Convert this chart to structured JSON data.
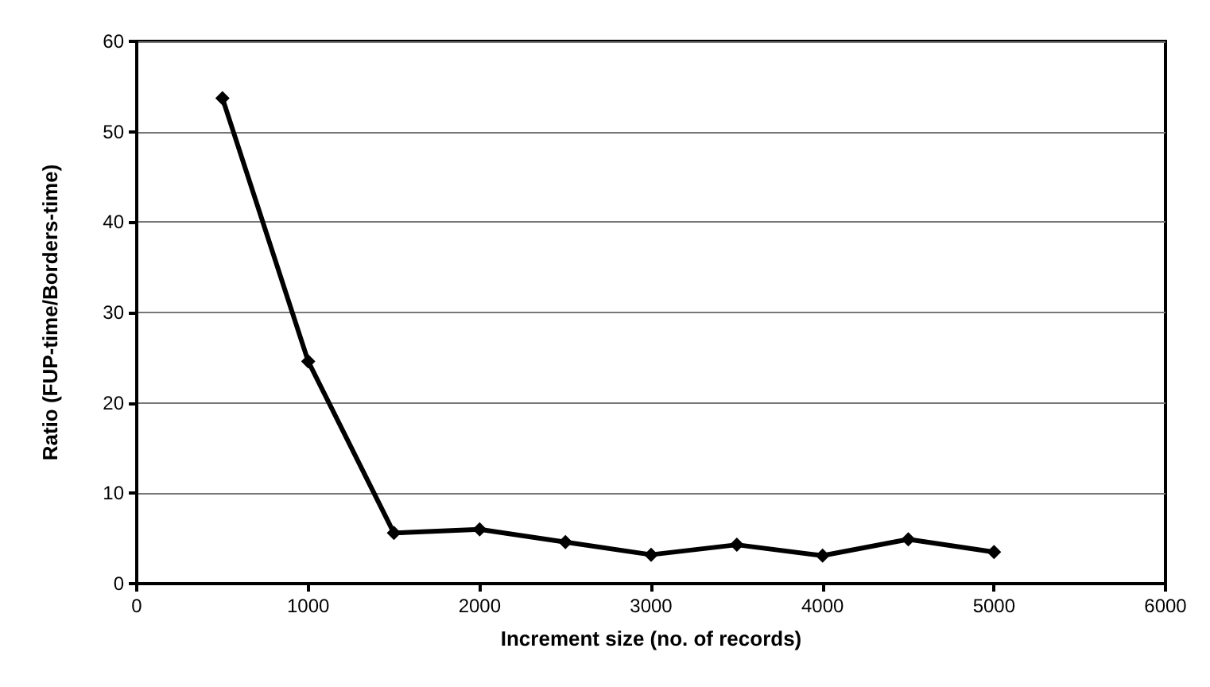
{
  "chart_data": {
    "type": "line",
    "xlabel": "Increment size (no. of records)",
    "ylabel": "Ratio (FUP-time/Borders-time)",
    "x": [
      500,
      1000,
      1500,
      2000,
      2500,
      3000,
      3500,
      4000,
      4500,
      5000
    ],
    "series": [
      {
        "color": "#000000",
        "values": [
          53.7,
          24.6,
          5.6,
          6.0,
          4.6,
          3.2,
          4.3,
          3.1,
          4.9,
          3.5
        ]
      }
    ],
    "xlim": [
      0,
      6000
    ],
    "xticks": [
      0,
      1000,
      2000,
      3000,
      4000,
      5000,
      6000
    ],
    "ylim": [
      0,
      60
    ],
    "yticks": [
      0,
      10,
      20,
      30,
      40,
      50,
      60
    ],
    "grid": "y",
    "marker": "diamond",
    "line_style": "solid"
  }
}
